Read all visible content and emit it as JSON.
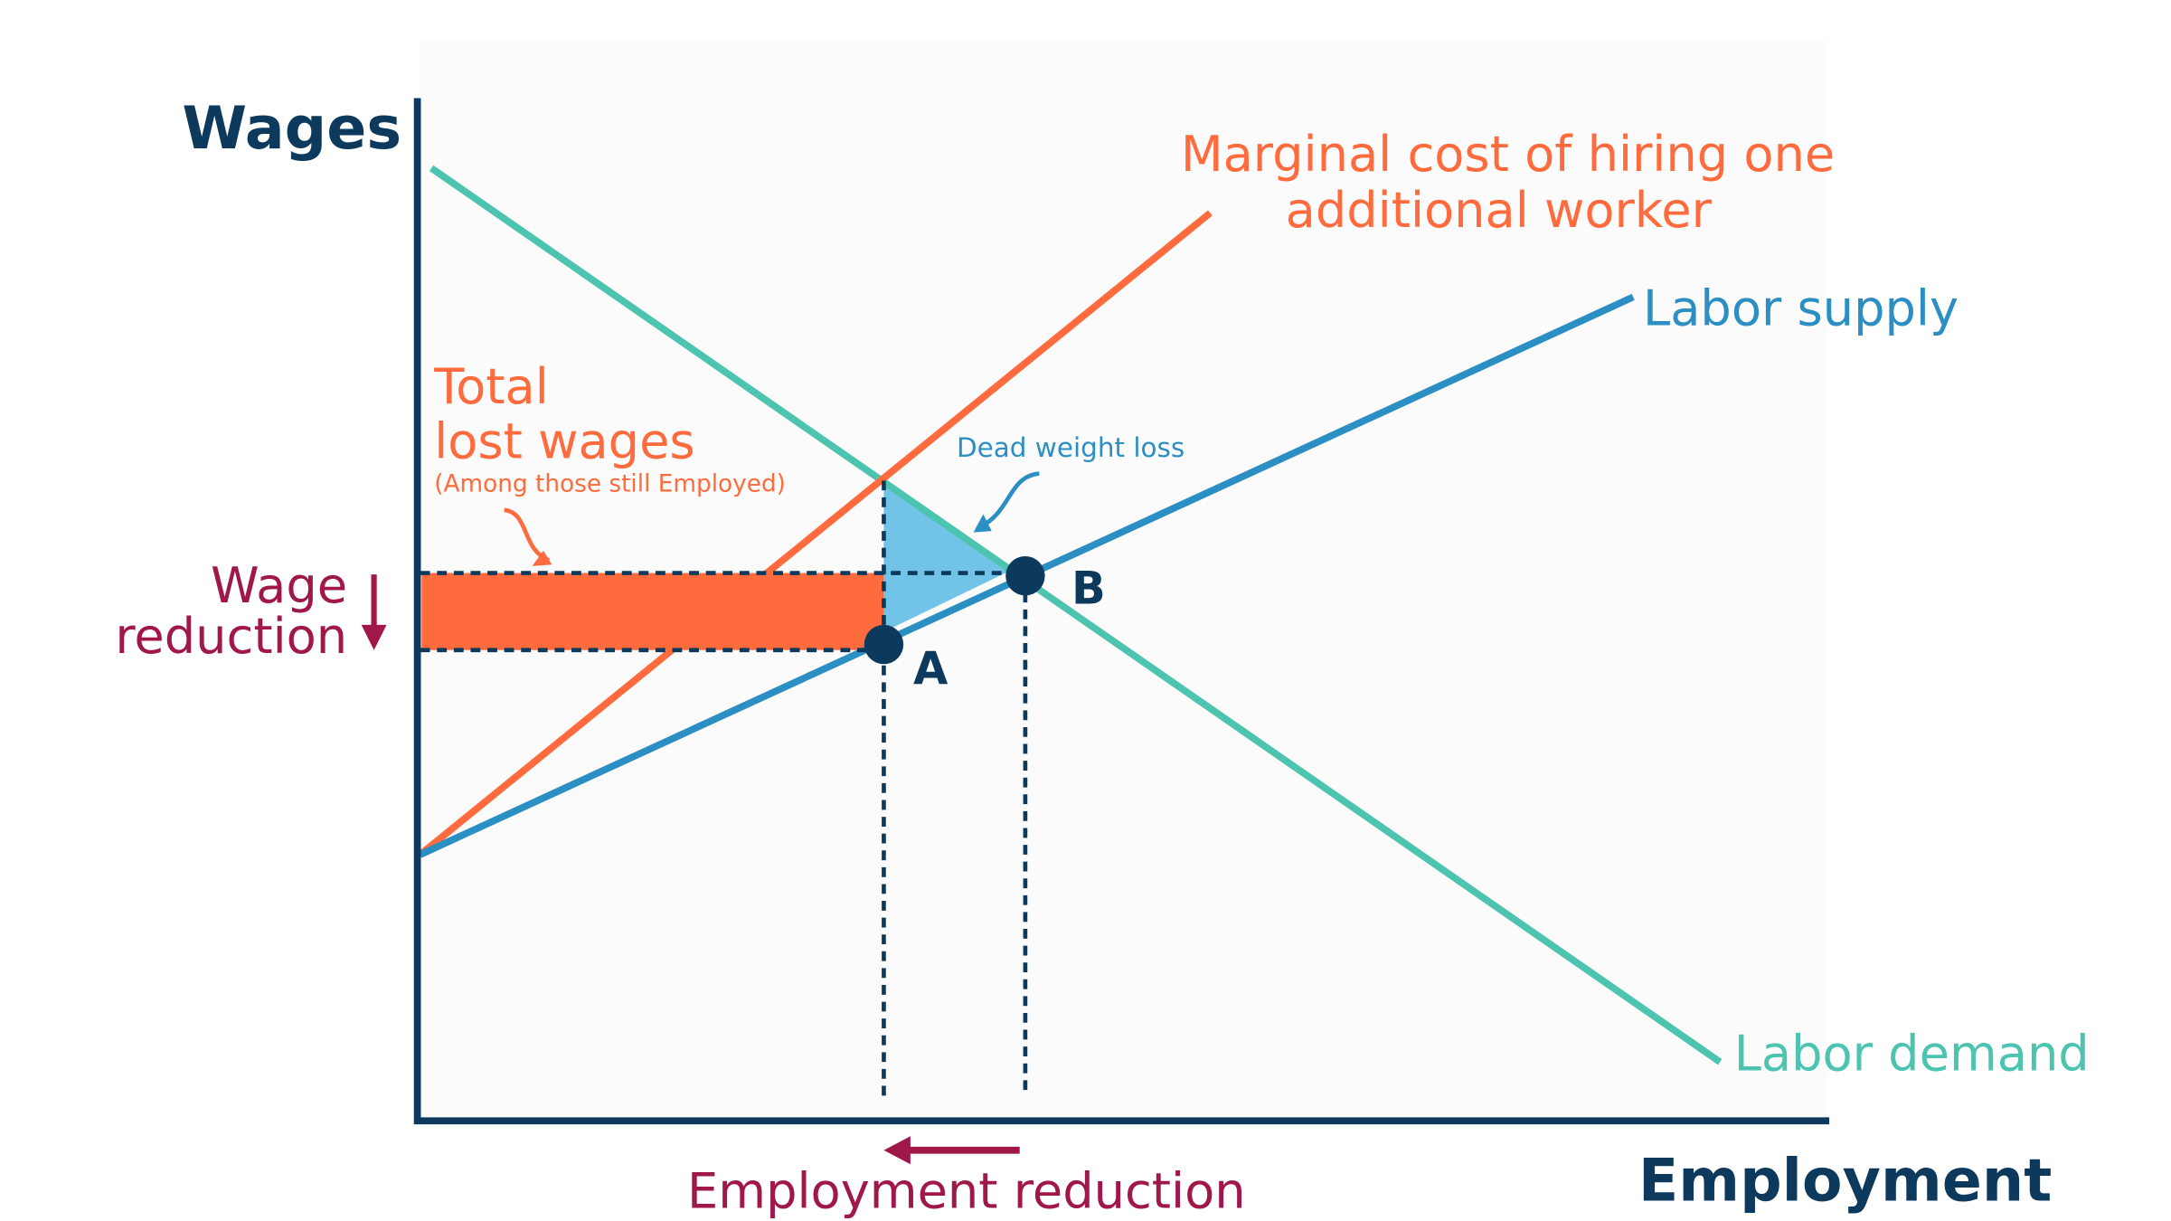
{
  "axes": {
    "y_label": "Wages",
    "x_label": "Employment"
  },
  "curves": {
    "marginal_cost": {
      "lines": [
        "Marginal cost of hiring one",
        "additional worker"
      ]
    },
    "labor_supply": {
      "label": "Labor supply"
    },
    "labor_demand": {
      "label": "Labor demand"
    }
  },
  "points": {
    "a": "A",
    "b": "B"
  },
  "annotations": {
    "lost_wages": {
      "lines": [
        "Total",
        "lost wages"
      ],
      "note": "(Among those still Employed)"
    },
    "dead_weight_loss": "Dead weight loss",
    "wage_reduction": {
      "lines": [
        "Wage",
        "reduction"
      ]
    },
    "employment_reduction": "Employment reduction"
  }
}
